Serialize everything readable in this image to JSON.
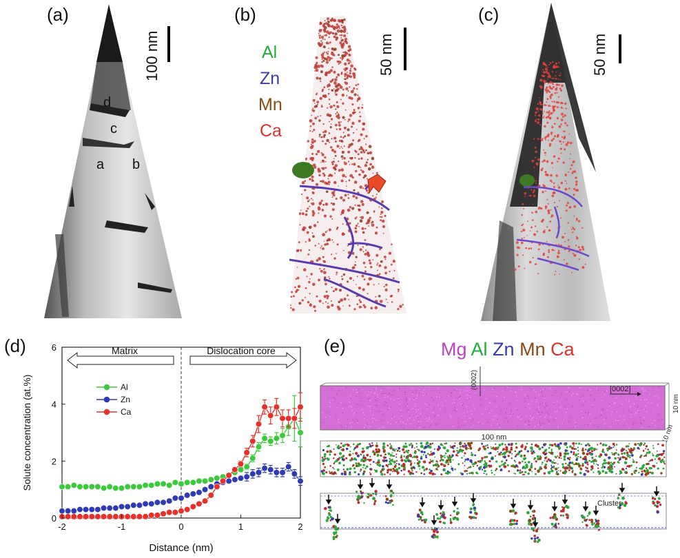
{
  "panels": {
    "a": {
      "letter": "(a)",
      "scale_label": "100 nm",
      "defect_labels": [
        "d",
        "c",
        "a",
        "b"
      ]
    },
    "b": {
      "letter": "(b)",
      "scale_label": "50 nm",
      "legend": [
        {
          "name": "Al",
          "color": "#1fae3a"
        },
        {
          "name": "Zn",
          "color": "#3a3ab0"
        },
        {
          "name": "Mn",
          "color": "#8a4a12"
        },
        {
          "name": "Ca",
          "color": "#e0302a"
        }
      ]
    },
    "c": {
      "letter": "(c)",
      "scale_label": "50 nm"
    },
    "d": {
      "letter": "(d)",
      "region_left": "Matrix",
      "region_right": "Dislocation core"
    },
    "e": {
      "letter": "(e)",
      "legend": [
        {
          "name": "Mg",
          "color": "#c040c0"
        },
        {
          "name": "Al",
          "color": "#1fae3a"
        },
        {
          "name": "Zn",
          "color": "#3a3ab0"
        },
        {
          "name": "Mn",
          "color": "#8a4a12"
        },
        {
          "name": "Ca",
          "color": "#e0302a"
        }
      ],
      "dir_label_top": "(0002)",
      "dir_label_arrow": "[0002]",
      "length_label": "100 nm",
      "side_label_1": "10 nm",
      "side_label_2": "10 nm",
      "cluster_label": "Cluster"
    }
  },
  "colors": {
    "Al": "#3cc93c",
    "Zn": "#2f3bb5",
    "Ca": "#e8302a",
    "Mg": "#c85ad0",
    "dislocation": "#5a3ab0"
  },
  "chart_data": {
    "type": "line",
    "xlabel": "Distance (nm)",
    "ylabel": "Solute concentration (at.%)",
    "xlim": [
      -2,
      2
    ],
    "ylim": [
      0,
      6
    ],
    "xticks": [
      "-2",
      "-1",
      "0",
      "1",
      "2"
    ],
    "yticks": [
      "0",
      "2",
      "4",
      "6"
    ],
    "legend_position": "upper-left",
    "x": [
      -2.0,
      -1.9,
      -1.8,
      -1.7,
      -1.6,
      -1.5,
      -1.4,
      -1.3,
      -1.2,
      -1.1,
      -1.0,
      -0.9,
      -0.8,
      -0.7,
      -0.6,
      -0.5,
      -0.4,
      -0.3,
      -0.2,
      -0.1,
      0.0,
      0.1,
      0.2,
      0.3,
      0.4,
      0.5,
      0.6,
      0.7,
      0.8,
      0.9,
      1.0,
      1.1,
      1.2,
      1.3,
      1.4,
      1.5,
      1.6,
      1.7,
      1.8,
      1.9,
      2.0
    ],
    "series": [
      {
        "name": "Al",
        "color": "#3cc93c",
        "values": [
          1.1,
          1.1,
          1.15,
          1.1,
          1.1,
          1.1,
          1.1,
          1.05,
          1.1,
          1.05,
          1.05,
          1.1,
          1.1,
          1.1,
          1.15,
          1.15,
          1.2,
          1.2,
          1.15,
          1.25,
          1.2,
          1.25,
          1.25,
          1.3,
          1.3,
          1.35,
          1.4,
          1.45,
          1.5,
          1.6,
          1.7,
          1.8,
          2.1,
          2.5,
          2.8,
          2.7,
          2.8,
          2.9,
          3.2,
          3.5,
          3.0
        ],
        "errors": [
          0.05,
          0.05,
          0.05,
          0.05,
          0.05,
          0.05,
          0.05,
          0.05,
          0.05,
          0.05,
          0.05,
          0.05,
          0.05,
          0.05,
          0.05,
          0.05,
          0.05,
          0.05,
          0.05,
          0.05,
          0.05,
          0.05,
          0.05,
          0.05,
          0.05,
          0.05,
          0.06,
          0.06,
          0.06,
          0.07,
          0.08,
          0.1,
          0.12,
          0.15,
          0.15,
          0.15,
          0.2,
          0.25,
          0.3,
          0.8,
          0.5
        ]
      },
      {
        "name": "Zn",
        "color": "#2f3bb5",
        "values": [
          0.25,
          0.25,
          0.25,
          0.3,
          0.3,
          0.3,
          0.3,
          0.35,
          0.35,
          0.35,
          0.4,
          0.4,
          0.45,
          0.45,
          0.5,
          0.5,
          0.55,
          0.55,
          0.6,
          0.7,
          0.7,
          0.8,
          0.85,
          0.9,
          1.0,
          1.1,
          1.2,
          1.25,
          1.3,
          1.35,
          1.4,
          1.45,
          1.55,
          1.6,
          1.75,
          1.7,
          1.6,
          1.6,
          1.8,
          1.55,
          1.3
        ]
      },
      {
        "name": "Ca",
        "color": "#e8302a",
        "values": [
          0.05,
          0.05,
          0.05,
          0.05,
          0.05,
          0.05,
          0.05,
          0.05,
          0.05,
          0.05,
          0.05,
          0.05,
          0.05,
          0.05,
          0.05,
          0.1,
          0.1,
          0.15,
          0.2,
          0.2,
          0.25,
          0.3,
          0.4,
          0.5,
          0.6,
          0.8,
          1.1,
          1.3,
          1.5,
          1.7,
          1.9,
          2.3,
          2.7,
          3.3,
          3.9,
          3.6,
          3.9,
          3.5,
          3.5,
          3.5,
          3.9
        ],
        "errors": [
          0,
          0,
          0,
          0,
          0,
          0,
          0,
          0,
          0,
          0,
          0,
          0,
          0,
          0,
          0,
          0,
          0,
          0,
          0,
          0,
          0,
          0,
          0,
          0,
          0,
          0,
          0.05,
          0.06,
          0.07,
          0.08,
          0.1,
          0.15,
          0.2,
          0.3,
          0.25,
          0.3,
          0.3,
          0.3,
          0.3,
          0.35,
          0.5
        ]
      }
    ]
  }
}
